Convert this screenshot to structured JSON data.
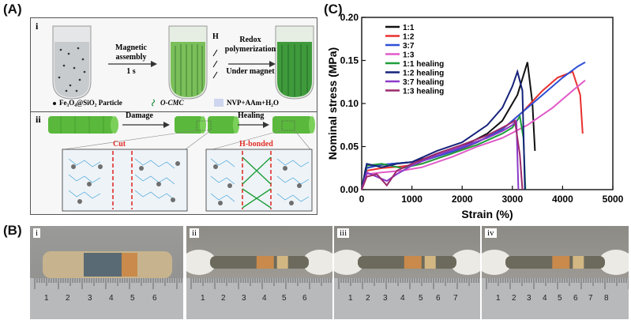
{
  "panels": {
    "A": "(A)",
    "B": "(B)",
    "C": "(C)"
  },
  "panelA": {
    "i": "i",
    "ii": "ii",
    "step1_top": "Magnetic",
    "step1_mid": "assembly",
    "step1_bottom": "1 s",
    "step2_top": "Redox",
    "step2_mid": "polymerization",
    "step2_bottom": "Under magnet",
    "h_marker": "H",
    "legend_particle": "Fe₃O₄@SiO₂ Particle",
    "legend_cmc": "O-CMC",
    "legend_monomer": "NVP+AAm+H₂O",
    "damage": "Damage",
    "healing": "Healing",
    "cut": "Cut",
    "hbonded": "H-bonded"
  },
  "panelB": {
    "photos": [
      {
        "roman": "i",
        "ticks": [
          "1",
          "2",
          "3",
          "4",
          "5",
          "6"
        ]
      },
      {
        "roman": "ii",
        "ticks": [
          "1",
          "2",
          "3",
          "4",
          "5",
          "6"
        ]
      },
      {
        "roman": "iii",
        "ticks": [
          "1",
          "2",
          "3",
          "4",
          "5",
          "6",
          "7"
        ]
      },
      {
        "roman": "iv",
        "ticks": [
          "1",
          "2",
          "3",
          "4",
          "5",
          "6",
          "7",
          "8"
        ]
      }
    ]
  },
  "chart_data": {
    "type": "line",
    "xlabel": "Strain (%)",
    "ylabel": "Nominal stress (MPa)",
    "xlim": [
      0,
      5000
    ],
    "ylim": [
      0,
      0.2
    ],
    "xticks": [
      "0",
      "1000",
      "2000",
      "3000",
      "4000",
      "5000"
    ],
    "yticks": [
      "0.00",
      "0.05",
      "0.10",
      "0.15",
      "0.20"
    ],
    "legend_position": "top-left",
    "series": [
      {
        "name": "1:1",
        "color": "#111111",
        "x": [
          0,
          80,
          300,
          600,
          1000,
          1500,
          2000,
          2500,
          2800,
          3100,
          3300,
          3400,
          3450
        ],
        "y": [
          0,
          0.025,
          0.028,
          0.03,
          0.032,
          0.04,
          0.05,
          0.065,
          0.08,
          0.11,
          0.148,
          0.1,
          0.045
        ]
      },
      {
        "name": "1:2",
        "color": "#e8312f",
        "x": [
          0,
          100,
          400,
          800,
          1200,
          1800,
          2300,
          2800,
          3200,
          3600,
          3900,
          4200,
          4350,
          4400
        ],
        "y": [
          0,
          0.022,
          0.025,
          0.027,
          0.03,
          0.042,
          0.055,
          0.07,
          0.09,
          0.115,
          0.13,
          0.137,
          0.11,
          0.065
        ]
      },
      {
        "name": "3:7",
        "color": "#2e4fd6",
        "x": [
          0,
          100,
          400,
          800,
          1200,
          1800,
          2300,
          2800,
          3200,
          3600,
          4000,
          4300,
          4450
        ],
        "y": [
          0,
          0.025,
          0.029,
          0.031,
          0.033,
          0.044,
          0.055,
          0.07,
          0.09,
          0.11,
          0.13,
          0.143,
          0.148
        ]
      },
      {
        "name": "1:3",
        "color": "#e05ac8",
        "x": [
          0,
          100,
          400,
          800,
          1200,
          1800,
          2300,
          2800,
          3300,
          3800,
          4200,
          4450
        ],
        "y": [
          0,
          0.018,
          0.02,
          0.022,
          0.026,
          0.038,
          0.05,
          0.06,
          0.075,
          0.095,
          0.115,
          0.127
        ]
      },
      {
        "name": "1:1 healing",
        "color": "#1e9e3a",
        "x": [
          0,
          100,
          400,
          800,
          1200,
          1800,
          2300,
          2800,
          3000,
          3150,
          3220,
          3260
        ],
        "y": [
          0,
          0.028,
          0.03,
          0.025,
          0.03,
          0.042,
          0.052,
          0.065,
          0.072,
          0.085,
          0.06,
          0.0
        ]
      },
      {
        "name": "1:2 healing",
        "color": "#16237a",
        "x": [
          0,
          100,
          400,
          700,
          1000,
          1500,
          2000,
          2500,
          2800,
          3000,
          3100,
          3200,
          3250
        ],
        "y": [
          0,
          0.03,
          0.026,
          0.03,
          0.032,
          0.045,
          0.055,
          0.075,
          0.095,
          0.12,
          0.137,
          0.115,
          0.0
        ]
      },
      {
        "name": "3:7 healing",
        "color": "#8a3ac9",
        "x": [
          0,
          100,
          300,
          500,
          700,
          1000,
          1500,
          2000,
          2500,
          2800,
          3000,
          3080,
          3120
        ],
        "y": [
          0,
          0.02,
          0.015,
          0.01,
          0.018,
          0.028,
          0.04,
          0.05,
          0.06,
          0.068,
          0.075,
          0.08,
          0.0
        ]
      },
      {
        "name": "1:3 healing",
        "color": "#9c2a6b",
        "x": [
          0,
          100,
          300,
          500,
          700,
          1000,
          1500,
          2000,
          2500,
          2900,
          3050,
          3150,
          3200
        ],
        "y": [
          0,
          0.015,
          0.018,
          0.005,
          0.022,
          0.03,
          0.042,
          0.052,
          0.063,
          0.075,
          0.08,
          0.04,
          0.0
        ]
      }
    ]
  }
}
